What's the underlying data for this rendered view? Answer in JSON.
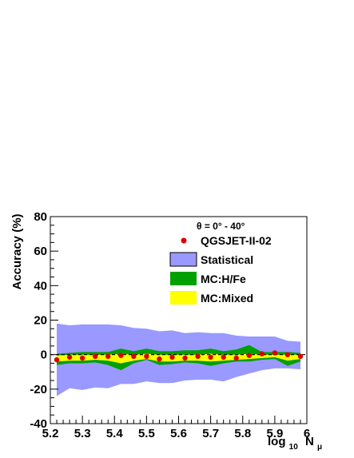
{
  "chart_data": {
    "type": "line",
    "title": "",
    "xlabel_main": "log",
    "xlabel_sub": "10",
    "xlabel_var": "N",
    "xlabel_varsub": "μ",
    "ylabel": "Accuracy (%)",
    "xlim": [
      5.2,
      6.0
    ],
    "ylim": [
      -40,
      80
    ],
    "x_ticks": [
      "5.2",
      "5.3",
      "5.4",
      "5.5",
      "5.6",
      "5.7",
      "5.8",
      "5.9",
      "6"
    ],
    "y_ticks": [
      "-40",
      "-20",
      "0",
      "20",
      "40",
      "60",
      "80"
    ],
    "legend_header": "θ = 0° - 40°",
    "legend_position": "top-right",
    "zero_line": true,
    "bands": [
      {
        "name": "Statistical",
        "color": "#9999ff",
        "x": [
          5.22,
          5.26,
          5.3,
          5.34,
          5.38,
          5.42,
          5.46,
          5.5,
          5.54,
          5.58,
          5.62,
          5.66,
          5.7,
          5.74,
          5.78,
          5.82,
          5.86,
          5.9,
          5.94,
          5.98
        ],
        "upper": [
          18,
          17,
          17.5,
          17.5,
          17.5,
          17,
          15.5,
          15,
          13.5,
          14,
          12.5,
          13,
          12.5,
          12.5,
          11,
          10.5,
          10.5,
          10.5,
          8,
          7.5
        ],
        "lower": [
          -24,
          -19.5,
          -20.5,
          -19,
          -19.5,
          -17,
          -17,
          -15.5,
          -16.5,
          -16.5,
          -15,
          -14.5,
          -14.5,
          -15.5,
          -13,
          -11,
          -9,
          -8,
          -8,
          -8.5
        ]
      },
      {
        "name": "MC:H/Fe",
        "color": "#00a000",
        "x": [
          5.22,
          5.26,
          5.3,
          5.34,
          5.38,
          5.42,
          5.46,
          5.5,
          5.54,
          5.58,
          5.62,
          5.66,
          5.7,
          5.74,
          5.78,
          5.82,
          5.86,
          5.9,
          5.94,
          5.98
        ],
        "upper": [
          0.5,
          1,
          1.5,
          1.5,
          1.5,
          3.5,
          2,
          3.5,
          2,
          2,
          2.5,
          2.5,
          3.5,
          2,
          3,
          5.5,
          1.5,
          1.5,
          1.5,
          1
        ],
        "lower": [
          -6,
          -5,
          -5,
          -4.5,
          -6,
          -9,
          -5,
          -3,
          -6,
          -5.5,
          -4.5,
          -5,
          -6.5,
          -5,
          -4,
          -4,
          -3,
          -2.5,
          -6.5,
          -4
        ]
      },
      {
        "name": "MC:Mixed",
        "color": "#ffff00",
        "x": [
          5.22,
          5.26,
          5.3,
          5.34,
          5.38,
          5.42,
          5.46,
          5.5,
          5.54,
          5.58,
          5.62,
          5.66,
          5.7,
          5.74,
          5.78,
          5.82,
          5.86,
          5.9,
          5.94,
          5.98
        ],
        "upper": [
          -0.5,
          0,
          0,
          0,
          0,
          0.5,
          0,
          0.5,
          0,
          0,
          0,
          0,
          0.5,
          0,
          0,
          0.5,
          0,
          0,
          0,
          0
        ],
        "lower": [
          -4,
          -3.5,
          -3.5,
          -3,
          -3.5,
          -5,
          -3.5,
          -2.5,
          -4,
          -4,
          -3.5,
          -3.5,
          -4,
          -3.5,
          -3,
          -2.5,
          -2,
          -1.5,
          -3.5,
          -2.5
        ]
      }
    ],
    "points": {
      "name": "QGSJET-II-02",
      "color": "#dd0000",
      "x": [
        5.22,
        5.26,
        5.3,
        5.34,
        5.38,
        5.42,
        5.46,
        5.5,
        5.54,
        5.58,
        5.62,
        5.66,
        5.7,
        5.74,
        5.78,
        5.82,
        5.86,
        5.9,
        5.94,
        5.98
      ],
      "y": [
        -3,
        -1.5,
        -2,
        -1,
        -1,
        -0.5,
        -1,
        -1,
        -2.5,
        -1.5,
        -2,
        -1,
        -1.5,
        -1.5,
        -2,
        -0.5,
        0.5,
        1,
        0,
        -1
      ]
    }
  }
}
